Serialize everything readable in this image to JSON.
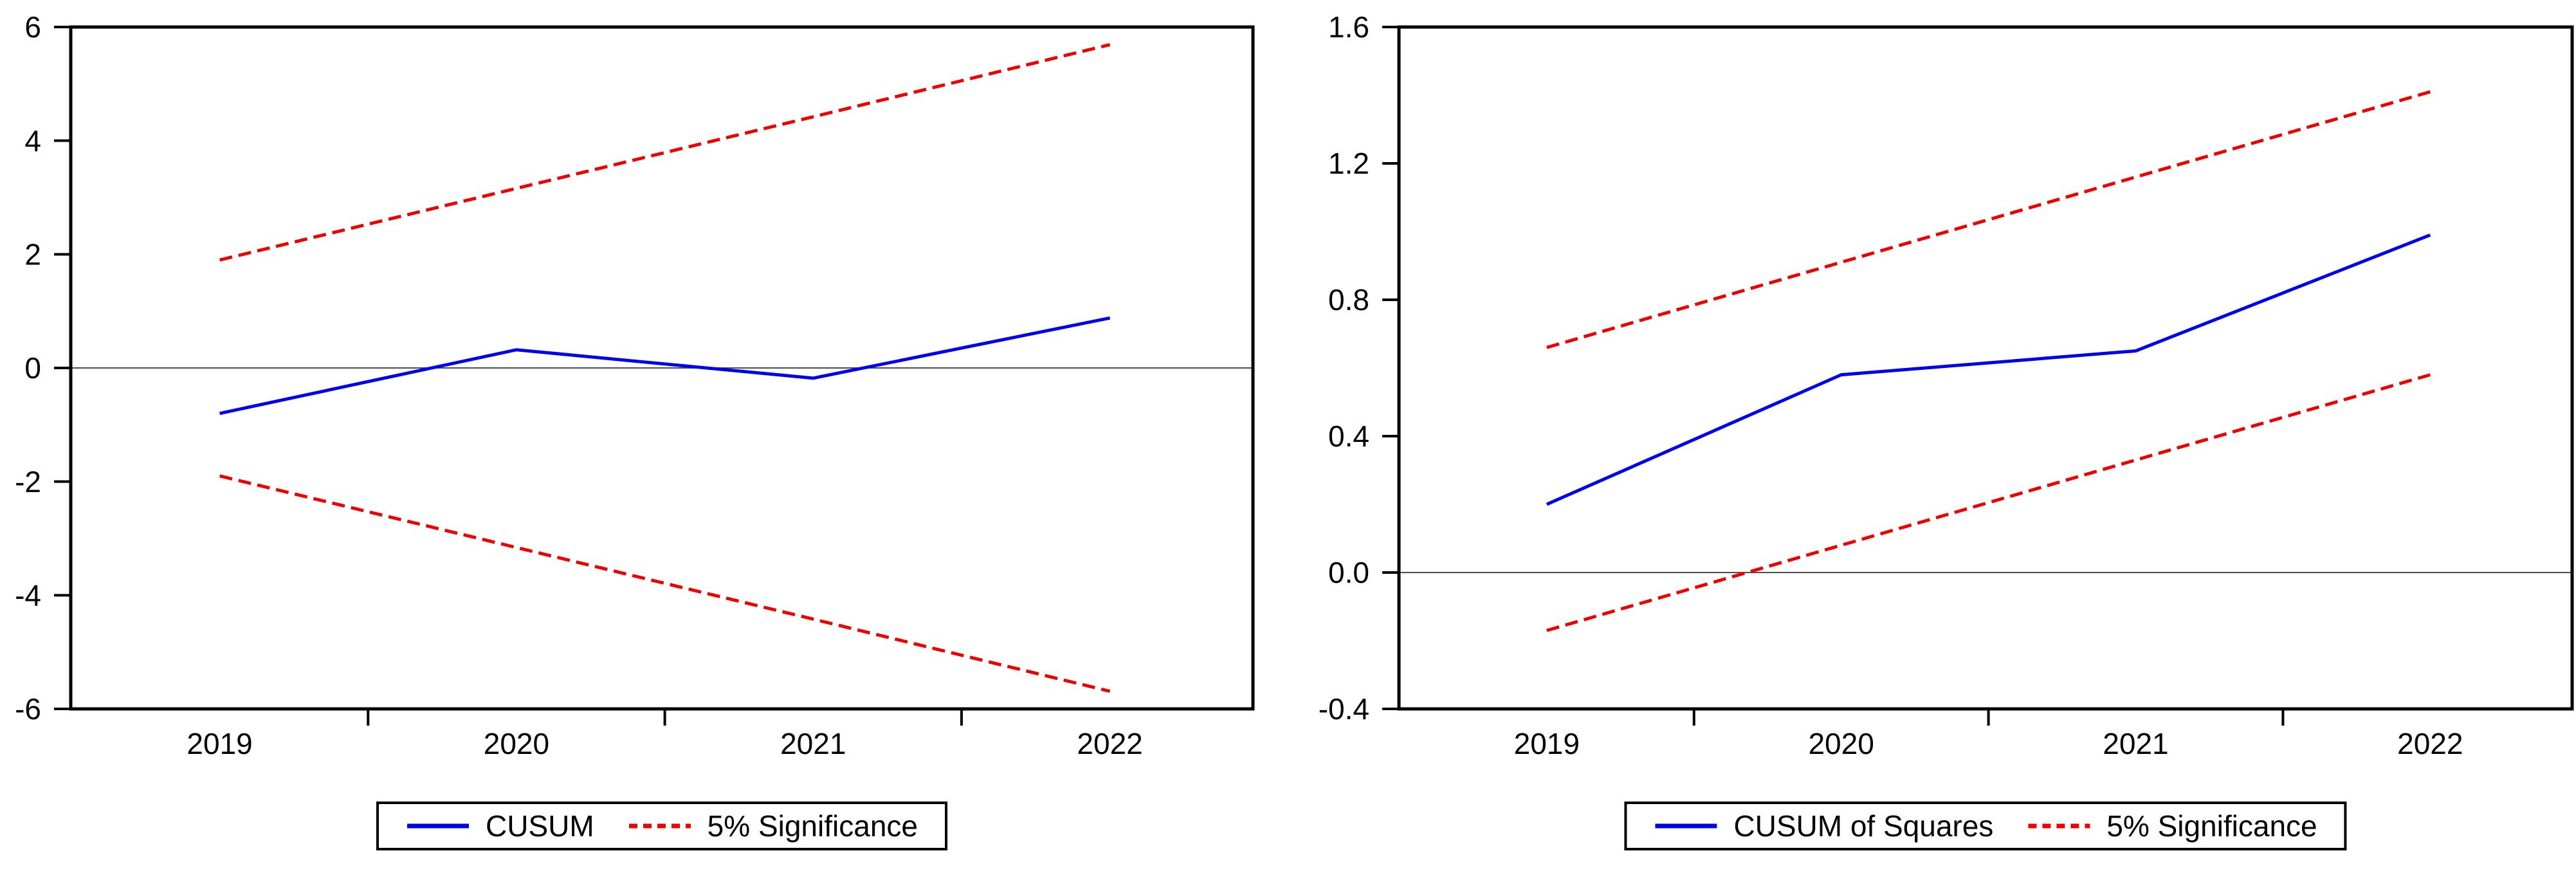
{
  "page": {
    "background": "#ffffff"
  },
  "chart_data": [
    {
      "id": "cusum",
      "type": "line",
      "title": "",
      "xlabel": "",
      "ylabel": "",
      "categories": [
        "2019",
        "2020",
        "2021",
        "2022"
      ],
      "ylim": [
        -6,
        6
      ],
      "ytick_values": [
        6,
        4,
        2,
        0,
        -2,
        -4,
        -6
      ],
      "ytick_labels": [
        "6",
        "4",
        "2",
        "0",
        "-2",
        "-4",
        "-6"
      ],
      "grid": false,
      "zero_line": true,
      "legend_position": "bottom",
      "colors": {
        "frame": "#000000",
        "zero_line": "#4d4d4d",
        "background": "#ffffff"
      },
      "series": [
        {
          "name": "CUSUM",
          "color": "#0000ee",
          "dashed": false,
          "values": [
            -0.8,
            0.32,
            -0.18,
            0.88
          ]
        },
        {
          "name": "5% Significance (upper)",
          "color": "#ee0000",
          "dashed": true,
          "values": [
            1.9,
            3.16,
            4.42,
            5.69
          ]
        },
        {
          "name": "5% Significance (lower)",
          "color": "#ee0000",
          "dashed": true,
          "values": [
            -1.9,
            -3.16,
            -4.42,
            -5.69
          ]
        }
      ],
      "legend": [
        {
          "label": "CUSUM",
          "color": "#0000ee",
          "dashed": false
        },
        {
          "label": "5% Significance",
          "color": "#ee0000",
          "dashed": true
        }
      ]
    },
    {
      "id": "cusum-of-squares",
      "type": "line",
      "title": "",
      "xlabel": "",
      "ylabel": "",
      "categories": [
        "2019",
        "2020",
        "2021",
        "2022"
      ],
      "ylim": [
        -0.4,
        1.6
      ],
      "ytick_values": [
        1.6,
        1.2,
        0.8,
        0.4,
        0.0,
        -0.4
      ],
      "ytick_labels": [
        "1.6",
        "1.2",
        "0.8",
        "0.4",
        "0.0",
        "-0.4"
      ],
      "grid": false,
      "zero_line": true,
      "legend_position": "bottom",
      "colors": {
        "frame": "#000000",
        "zero_line": "#4d4d4d",
        "background": "#ffffff"
      },
      "series": [
        {
          "name": "CUSUM of Squares",
          "color": "#0000ee",
          "dashed": false,
          "values": [
            0.2,
            0.58,
            0.65,
            0.99
          ]
        },
        {
          "name": "5% Significance (upper)",
          "color": "#ee0000",
          "dashed": true,
          "values": [
            0.66,
            0.91,
            1.16,
            1.41
          ]
        },
        {
          "name": "5% Significance (lower)",
          "color": "#ee0000",
          "dashed": true,
          "values": [
            -0.17,
            0.08,
            0.33,
            0.58
          ]
        }
      ],
      "legend": [
        {
          "label": "CUSUM of Squares",
          "color": "#0000ee",
          "dashed": false
        },
        {
          "label": "5% Significance",
          "color": "#ee0000",
          "dashed": true
        }
      ]
    }
  ]
}
